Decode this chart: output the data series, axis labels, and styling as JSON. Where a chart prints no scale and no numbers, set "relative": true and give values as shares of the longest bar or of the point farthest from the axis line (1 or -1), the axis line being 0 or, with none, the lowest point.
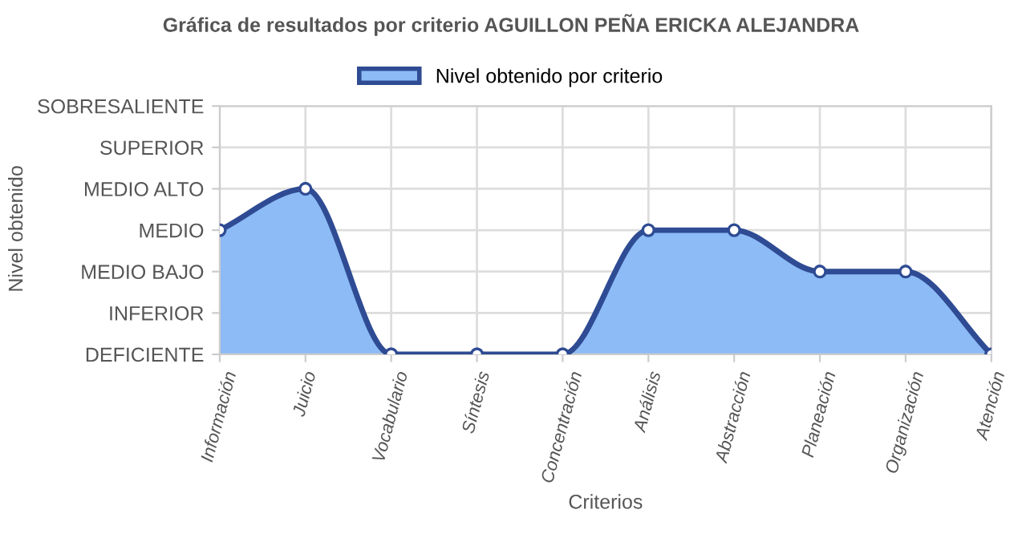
{
  "chart_data": {
    "type": "area",
    "title": "Gráfica de resultados por criterio AGUILLON PEÑA ERICKA ALEJANDRA",
    "xlabel": "Criterios",
    "annotations": [
      "Nivel obtenido"
    ],
    "categories": [
      "Información",
      "Juicio",
      "Vocabulario",
      "Síntesis",
      "Concentración",
      "Análisis",
      "Abstracción",
      "Planeación",
      "Organización",
      "Atención"
    ],
    "series": [
      {
        "name": "Nivel obtenido por criterio",
        "color": "#8cbbf5",
        "values": [
          0.75,
          1,
          0,
          0,
          0,
          0.75,
          0.75,
          0.5,
          0.5,
          0
        ]
      }
    ],
    "relative": true,
    "y_categories": [
      "SOBRESALIENTE",
      "SUPERIOR",
      "MEDIO ALTO",
      "MEDIO",
      "MEDIO BAJO",
      "INFERIOR",
      "DEFICIENTE"
    ],
    "grid": true,
    "legend": "top",
    "marker": "circle",
    "line_style": "solid"
  }
}
